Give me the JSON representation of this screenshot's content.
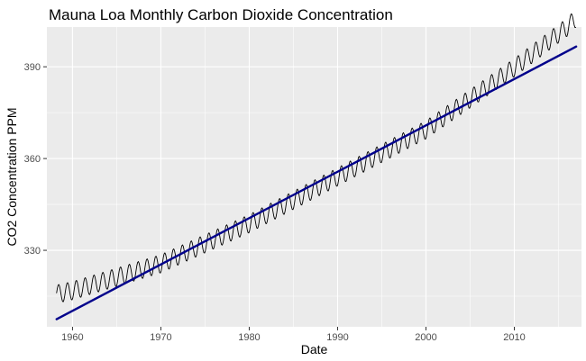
{
  "chart_data": {
    "type": "line",
    "title": "Mauna Loa Monthly Carbon Dioxide Concentration",
    "xlabel": "Date",
    "ylabel": "CO2 Concentration PPM",
    "xlim": [
      1957.1,
      2017.6
    ],
    "ylim": [
      305,
      403
    ],
    "x_ticks": [
      1960,
      1970,
      1980,
      1990,
      2000,
      2010
    ],
    "y_ticks": [
      330,
      360,
      390
    ],
    "grid": true,
    "legend": "none",
    "series": [
      {
        "role": "observed-monthly",
        "color": "#000000",
        "start_year": 1958.2,
        "end_year": 2017.0,
        "step_years": 0.0833333,
        "seasonal_amplitude": 3,
        "anchors": [
          {
            "x": 1958.2,
            "y": 315.7
          },
          {
            "x": 1960,
            "y": 316.8
          },
          {
            "x": 1970,
            "y": 325.6
          },
          {
            "x": 1980,
            "y": 338.7
          },
          {
            "x": 1990,
            "y": 354.0
          },
          {
            "x": 2000,
            "y": 369.4
          },
          {
            "x": 2010,
            "y": 389.7
          },
          {
            "x": 2016,
            "y": 403.0
          },
          {
            "x": 2017.0,
            "y": 406.0
          }
        ]
      },
      {
        "role": "linear-fit",
        "color": "#00008B",
        "x": [
          1958.2,
          2017.0
        ],
        "y": [
          307.5,
          396.6
        ]
      }
    ]
  }
}
